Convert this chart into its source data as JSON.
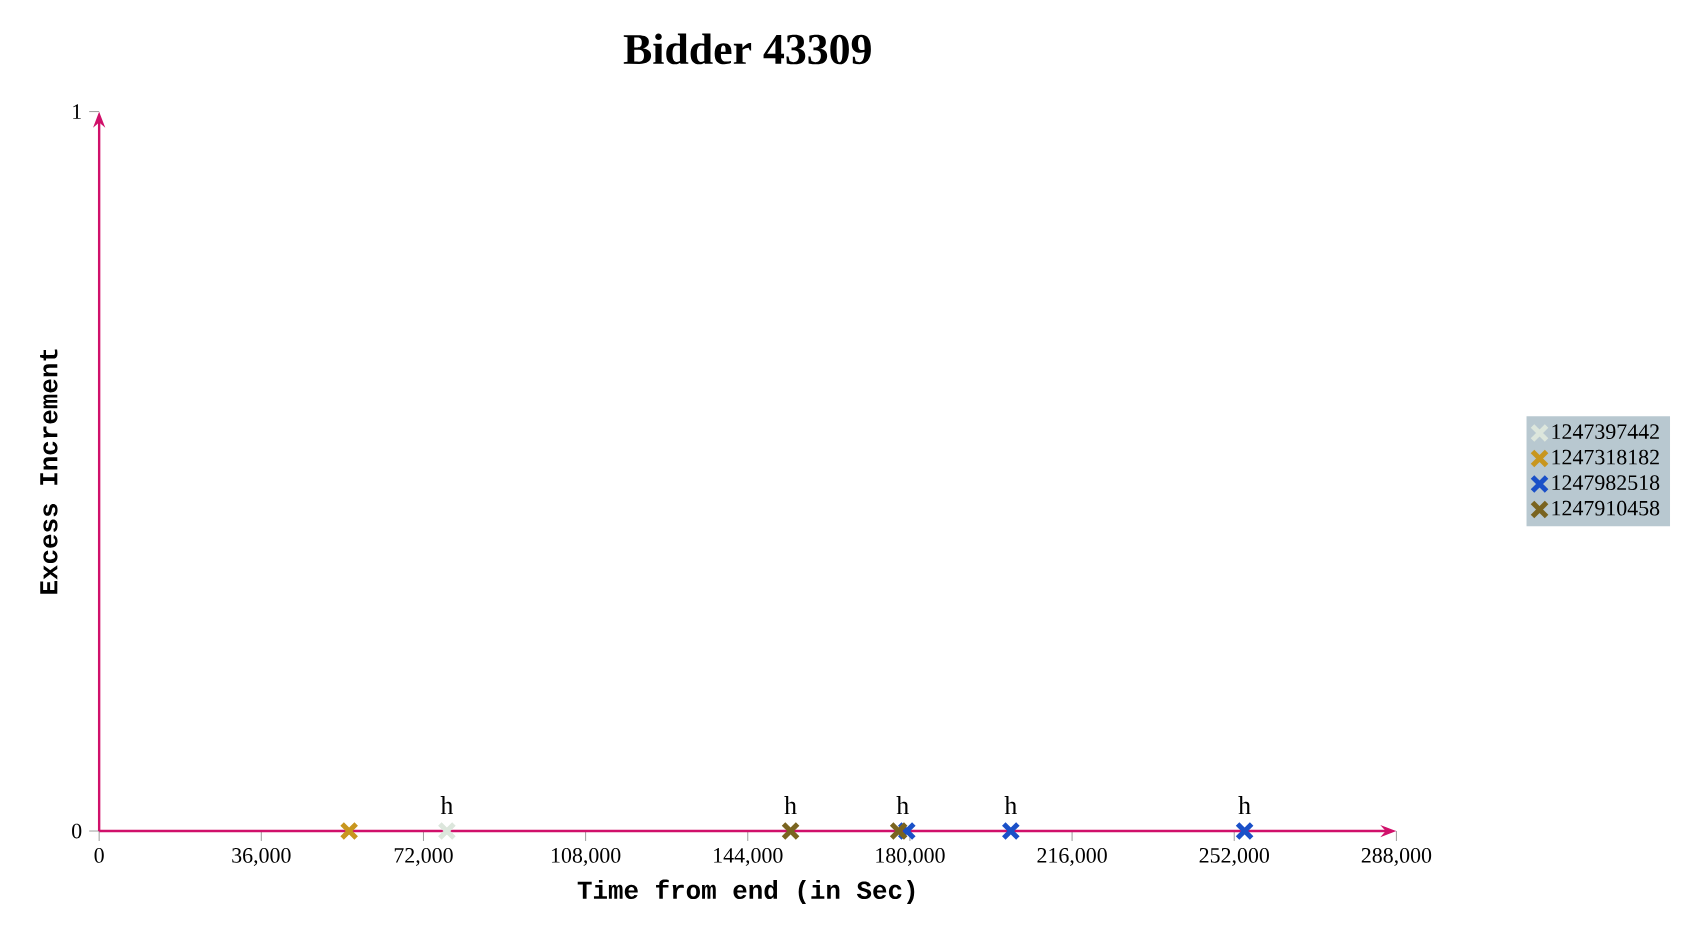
{
  "chart_data": {
    "type": "scatter",
    "title": "Bidder 43309",
    "xlabel": "Time from end (in Sec)",
    "ylabel": "Excess Increment",
    "xlim": [
      0,
      288000
    ],
    "ylim": [
      0,
      1
    ],
    "xticks": [
      0,
      {
        "value": 36000,
        "label": "36,000"
      },
      {
        "value": 72000,
        "label": "72,000"
      },
      {
        "value": 108000,
        "label": "108,000"
      },
      {
        "value": 144000,
        "label": "144,000"
      },
      {
        "value": 180000,
        "label": "180,000"
      },
      {
        "value": 216000,
        "label": "216,000"
      },
      {
        "value": 252000,
        "label": "252,000"
      },
      {
        "value": 288000,
        "label": "288,000"
      }
    ],
    "yticks": [
      0,
      1
    ],
    "marker": "cross",
    "legend": "right",
    "grid": false,
    "series": [
      {
        "name": "1247397442",
        "color": "#dce6dc",
        "x": [
          77200
        ],
        "values": [
          0
        ]
      },
      {
        "name": "1247318182",
        "color": "#c8961e",
        "x": [
          55500
        ],
        "values": [
          0
        ]
      },
      {
        "name": "1247982518",
        "color": "#1a50c8",
        "x": [
          179300,
          202400,
          254300
        ],
        "values": [
          0,
          0,
          0
        ]
      },
      {
        "name": "1247910458",
        "color": "#7a6420",
        "x": [
          153500,
          177500
        ],
        "values": [
          0,
          0
        ]
      }
    ],
    "annotations": [
      {
        "text": "h",
        "x": 77200,
        "y": 0
      },
      {
        "text": "h",
        "x": 153500,
        "y": 0
      },
      {
        "text": "h",
        "x": 178400,
        "y": 0
      },
      {
        "text": "h",
        "x": 202400,
        "y": 0
      },
      {
        "text": "h",
        "x": 254300,
        "y": 0
      }
    ]
  }
}
